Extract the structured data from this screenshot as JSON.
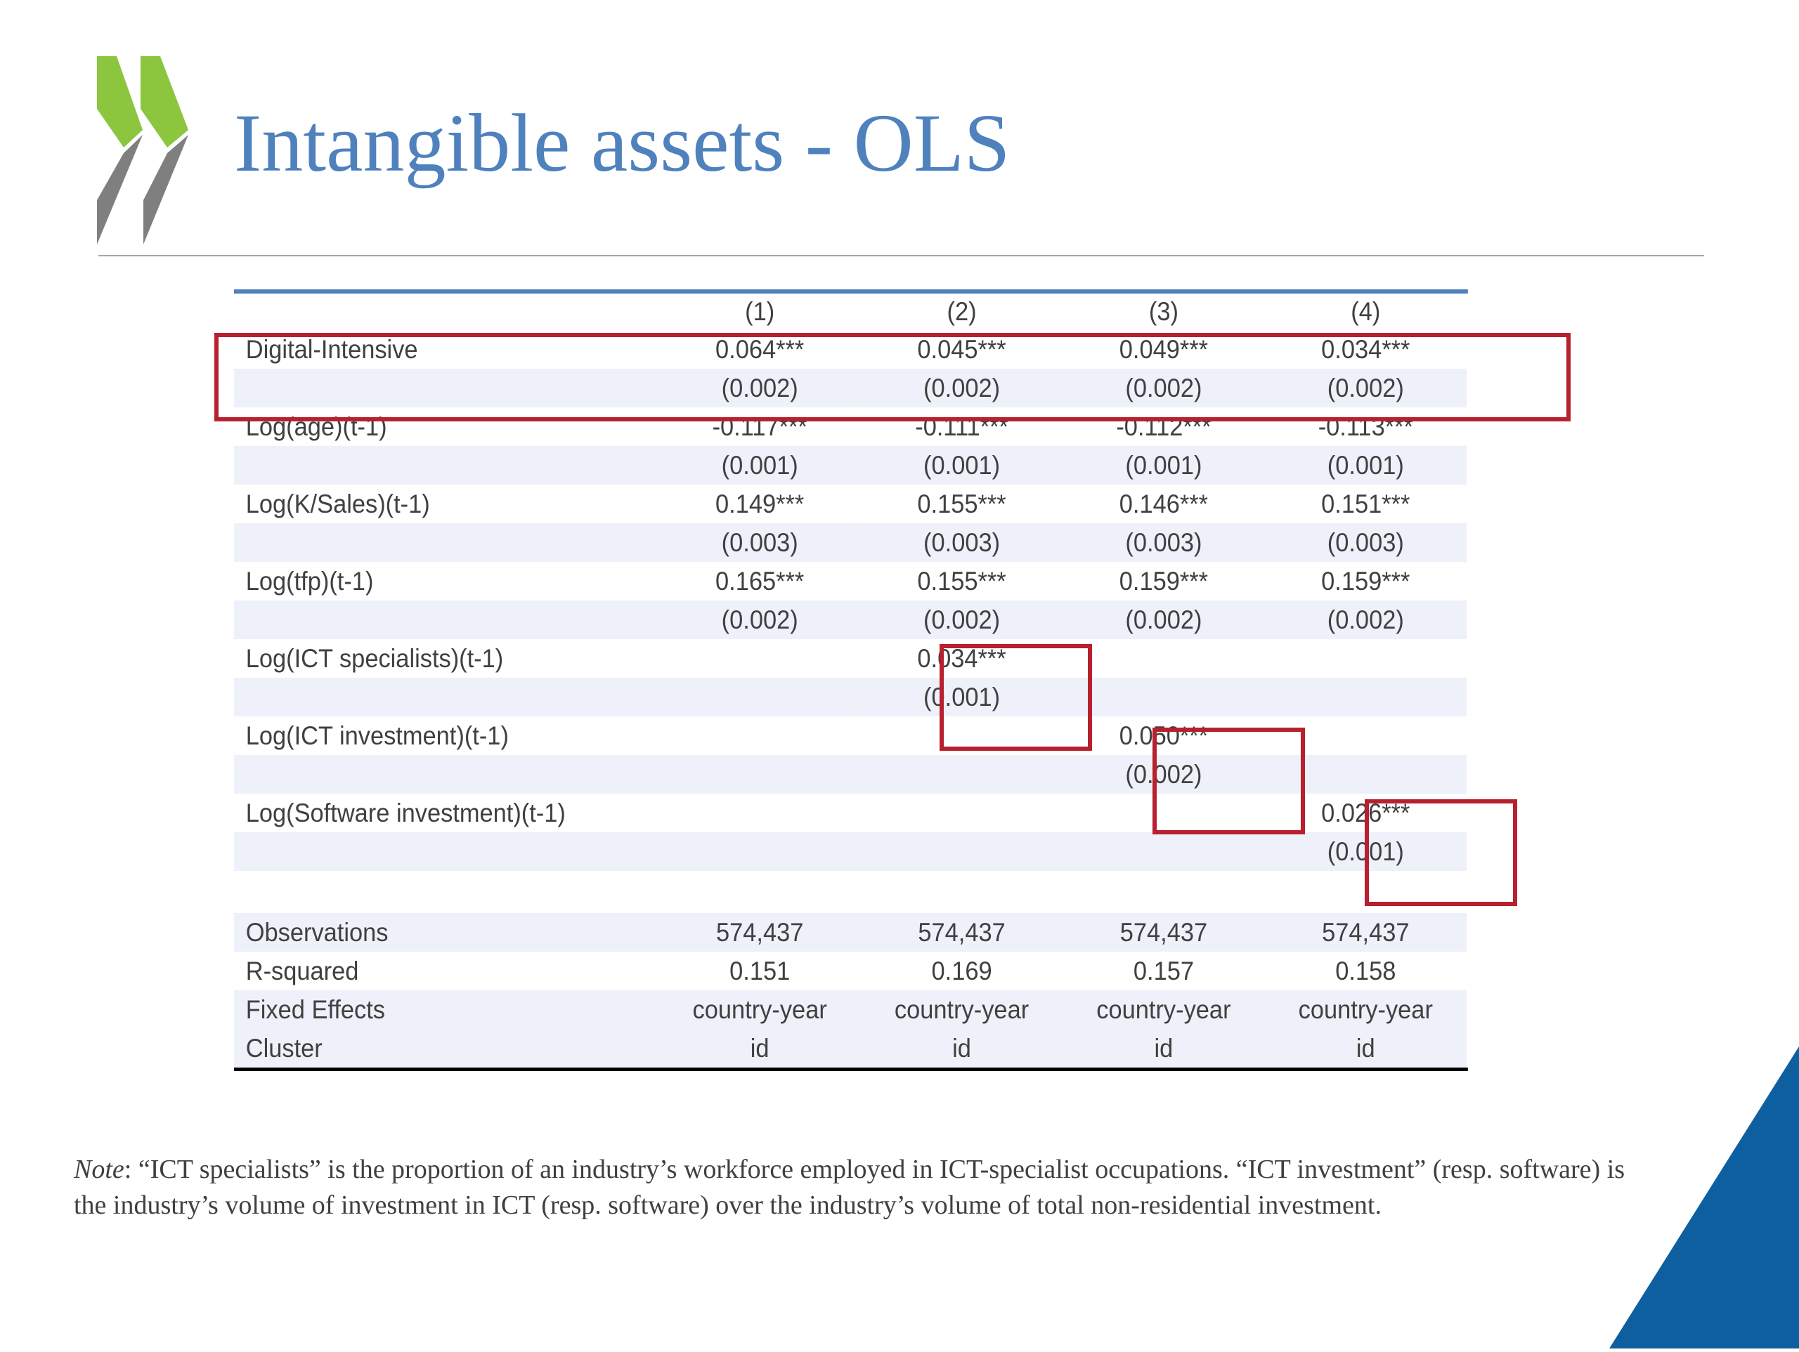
{
  "title": "Intangible assets - OLS",
  "table": {
    "columns": [
      "(1)",
      "(2)",
      "(3)",
      "(4)"
    ],
    "rows": [
      {
        "label": "Digital-Intensive",
        "values": [
          "0.064***",
          "0.045***",
          "0.049***",
          "0.034***"
        ],
        "shaded": false
      },
      {
        "label": "",
        "values": [
          "(0.002)",
          "(0.002)",
          "(0.002)",
          "(0.002)"
        ],
        "shaded": true
      },
      {
        "label": "Log(age)(t-1)",
        "values": [
          "-0.117***",
          "-0.111***",
          "-0.112***",
          "-0.113***"
        ],
        "shaded": false
      },
      {
        "label": "",
        "values": [
          "(0.001)",
          "(0.001)",
          "(0.001)",
          "(0.001)"
        ],
        "shaded": true
      },
      {
        "label": "Log(K/Sales)(t-1)",
        "values": [
          "0.149***",
          "0.155***",
          "0.146***",
          "0.151***"
        ],
        "shaded": false
      },
      {
        "label": "",
        "values": [
          "(0.003)",
          "(0.003)",
          "(0.003)",
          "(0.003)"
        ],
        "shaded": true
      },
      {
        "label": "Log(tfp)(t-1)",
        "values": [
          "0.165***",
          "0.155***",
          "0.159***",
          "0.159***"
        ],
        "shaded": false
      },
      {
        "label": "",
        "values": [
          "(0.002)",
          "(0.002)",
          "(0.002)",
          "(0.002)"
        ],
        "shaded": true
      },
      {
        "label": "Log(ICT specialists)(t-1)",
        "values": [
          "",
          "0.034***",
          "",
          ""
        ],
        "shaded": false
      },
      {
        "label": "",
        "values": [
          "",
          "(0.001)",
          "",
          ""
        ],
        "shaded": true
      },
      {
        "label": "Log(ICT investment)(t-1)",
        "values": [
          "",
          "",
          "0.050***",
          ""
        ],
        "shaded": false
      },
      {
        "label": "",
        "values": [
          "",
          "",
          "(0.002)",
          ""
        ],
        "shaded": true
      },
      {
        "label": "Log(Software investment)(t-1)",
        "values": [
          "",
          "",
          "",
          "0.026***"
        ],
        "shaded": false
      },
      {
        "label": "",
        "values": [
          "",
          "",
          "",
          "(0.001)"
        ],
        "shaded": true
      }
    ],
    "stats": [
      {
        "label": "Observations",
        "values": [
          "574,437",
          "574,437",
          "574,437",
          "574,437"
        ],
        "shaded": true
      },
      {
        "label": "R-squared",
        "values": [
          "0.151",
          "0.169",
          "0.157",
          "0.158"
        ],
        "shaded": false
      },
      {
        "label": "Fixed Effects",
        "values": [
          "country-year",
          "country-year",
          "country-year",
          "country-year"
        ],
        "shaded": true
      },
      {
        "label": "Cluster",
        "values": [
          "id",
          "id",
          "id",
          "id"
        ],
        "shaded": true
      }
    ]
  },
  "note": {
    "lead": "Note",
    "text": ": “ICT specialists” is the proportion of an industry’s workforce employed in ICT-specialist occupations. “ICT investment” (resp. software) is the industry’s volume of investment in ICT (resp. software) over the industry’s volume of total non-residential investment."
  },
  "colors": {
    "title": "#4f81bd",
    "highlight": "#b7202e",
    "logo_green": "#8cc63f",
    "logo_grey": "#7f7f7f",
    "corner": "#0d5fa0",
    "row_shade": "#eef1f9"
  }
}
